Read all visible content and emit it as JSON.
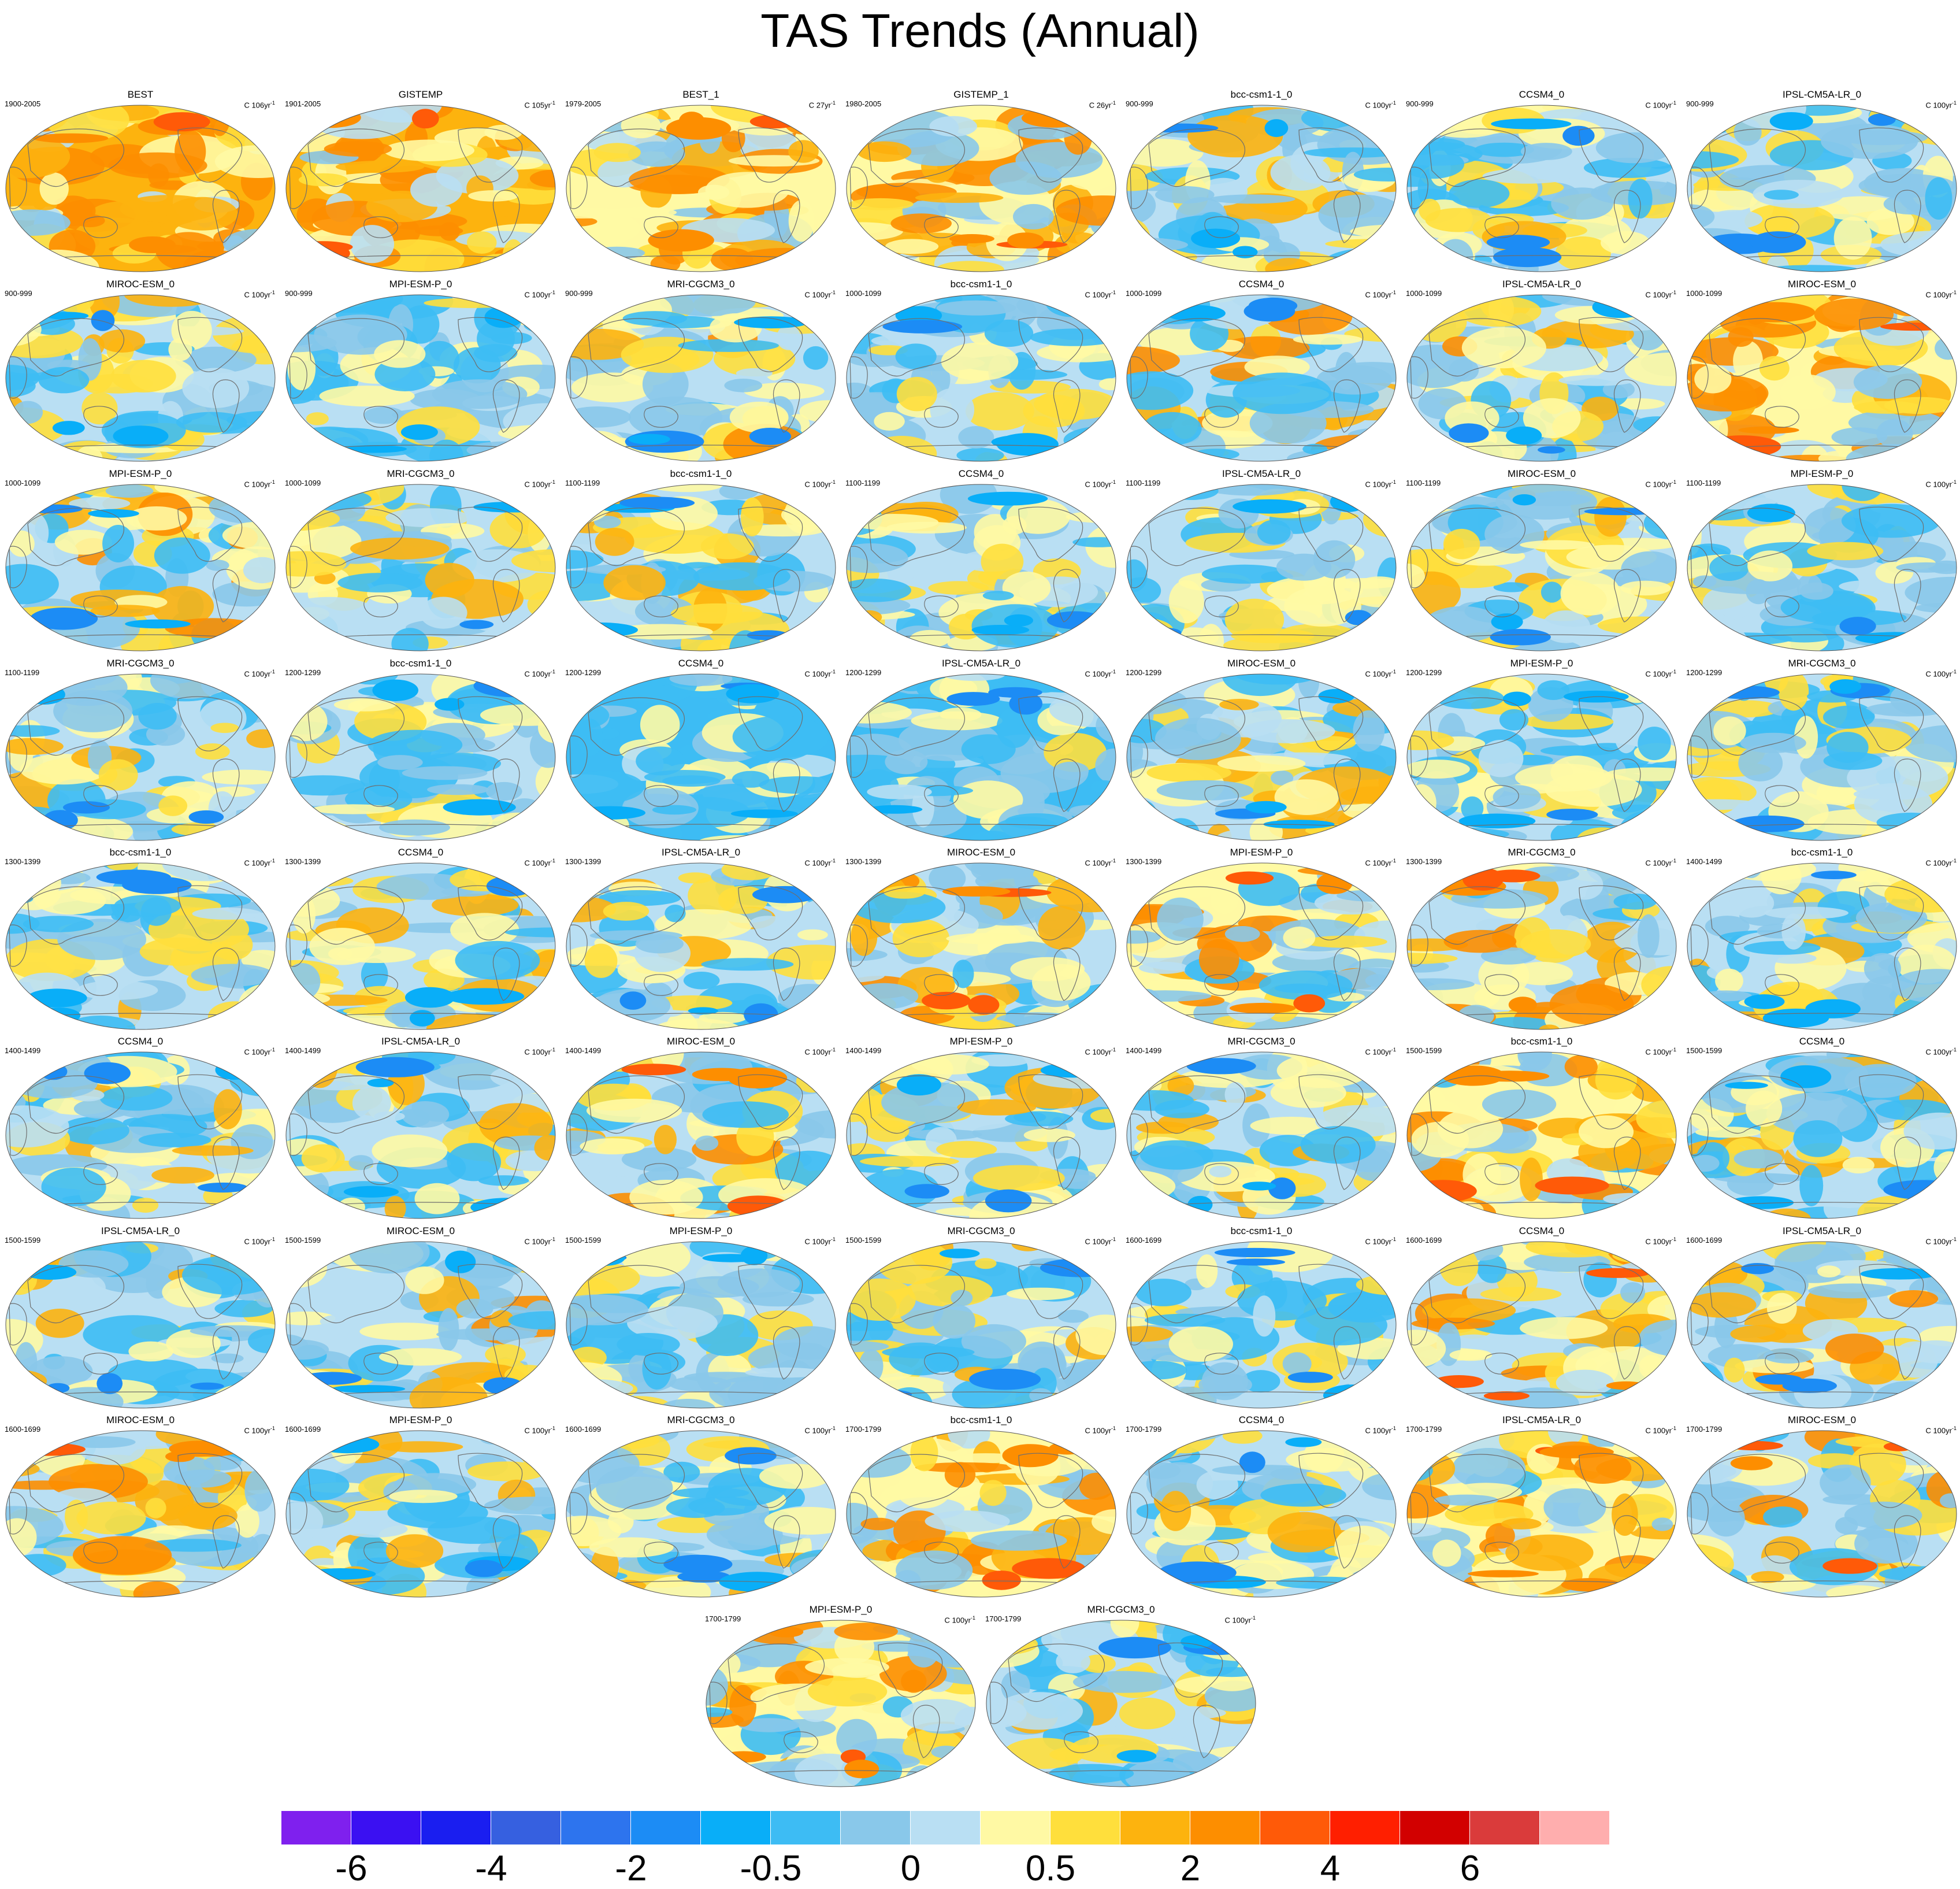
{
  "title": "TAS Trends (Annual)",
  "colors": {
    "palette": [
      "#7f20ee",
      "#3b10f2",
      "#1a1ef0",
      "#3660e0",
      "#2d74ee",
      "#1c8cf5",
      "#09aef8",
      "#3dbcf4",
      "#89c8ea",
      "#b9dff3",
      "#fff9a4",
      "#ffdf3c",
      "#fdb30e",
      "#fd8e00",
      "#ff5a08",
      "#ff1f00",
      "#d20000",
      "#da3b3b",
      "#ffaeae"
    ]
  },
  "colorbar": {
    "labels": [
      "-6",
      "-4",
      "-2",
      "-0.5",
      "0",
      "0.5",
      "2",
      "4",
      "6"
    ]
  },
  "panels": [
    {
      "name": "BEST",
      "period": "1900-2005",
      "units": "C 106yr",
      "warm": 0.92,
      "icon": "world-map"
    },
    {
      "name": "GISTEMP",
      "period": "1901-2005",
      "units": "C 105yr",
      "warm": 0.95,
      "icon": "world-map"
    },
    {
      "name": "BEST_1",
      "period": "1979-2005",
      "units": "C 27yr",
      "warm": 0.78,
      "icon": "world-map"
    },
    {
      "name": "GISTEMP_1",
      "period": "1980-2005",
      "units": "C 26yr",
      "warm": 0.78,
      "icon": "world-map"
    },
    {
      "name": "bcc-csm1-1_0",
      "period": "900-999",
      "units": "C 100yr",
      "warm": 0.5,
      "icon": "world-map"
    },
    {
      "name": "CCSM4_0",
      "period": "900-999",
      "units": "C 100yr",
      "warm": 0.4,
      "icon": "world-map"
    },
    {
      "name": "IPSL-CM5A-LR_0",
      "period": "900-999",
      "units": "C 100yr",
      "warm": 0.4,
      "icon": "world-map"
    },
    {
      "name": "MIROC-ESM_0",
      "period": "900-999",
      "units": "C 100yr",
      "warm": 0.5,
      "icon": "world-map"
    },
    {
      "name": "MPI-ESM-P_0",
      "period": "900-999",
      "units": "C 100yr",
      "warm": 0.3,
      "icon": "world-map"
    },
    {
      "name": "MRI-CGCM3_0",
      "period": "900-999",
      "units": "C 100yr",
      "warm": 0.55,
      "icon": "world-map"
    },
    {
      "name": "bcc-csm1-1_0",
      "period": "1000-1099",
      "units": "C 100yr",
      "warm": 0.4,
      "icon": "world-map"
    },
    {
      "name": "CCSM4_0",
      "period": "1000-1099",
      "units": "C 100yr",
      "warm": 0.55,
      "icon": "world-map"
    },
    {
      "name": "IPSL-CM5A-LR_0",
      "period": "1000-1099",
      "units": "C 100yr",
      "warm": 0.55,
      "icon": "world-map"
    },
    {
      "name": "MIROC-ESM_0",
      "period": "1000-1099",
      "units": "C 100yr",
      "warm": 0.75,
      "icon": "world-map"
    },
    {
      "name": "MPI-ESM-P_0",
      "period": "1000-1099",
      "units": "C 100yr",
      "warm": 0.55,
      "icon": "world-map"
    },
    {
      "name": "MRI-CGCM3_0",
      "period": "1000-1099",
      "units": "C 100yr",
      "warm": 0.5,
      "icon": "world-map"
    },
    {
      "name": "bcc-csm1-1_0",
      "period": "1100-1199",
      "units": "C 100yr",
      "warm": 0.5,
      "icon": "world-map"
    },
    {
      "name": "CCSM4_0",
      "period": "1100-1199",
      "units": "C 100yr",
      "warm": 0.45,
      "icon": "world-map"
    },
    {
      "name": "IPSL-CM5A-LR_0",
      "period": "1100-1199",
      "units": "C 100yr",
      "warm": 0.35,
      "icon": "world-map"
    },
    {
      "name": "MIROC-ESM_0",
      "period": "1100-1199",
      "units": "C 100yr",
      "warm": 0.5,
      "icon": "world-map"
    },
    {
      "name": "MPI-ESM-P_0",
      "period": "1100-1199",
      "units": "C 100yr",
      "warm": 0.35,
      "icon": "world-map"
    },
    {
      "name": "MRI-CGCM3_0",
      "period": "1100-1199",
      "units": "C 100yr",
      "warm": 0.45,
      "icon": "world-map"
    },
    {
      "name": "bcc-csm1-1_0",
      "period": "1200-1299",
      "units": "C 100yr",
      "warm": 0.3,
      "icon": "world-map"
    },
    {
      "name": "CCSM4_0",
      "period": "1200-1299",
      "units": "C 100yr",
      "warm": 0.1,
      "icon": "world-map"
    },
    {
      "name": "IPSL-CM5A-LR_0",
      "period": "1200-1299",
      "units": "C 100yr",
      "warm": 0.2,
      "icon": "world-map"
    },
    {
      "name": "MIROC-ESM_0",
      "period": "1200-1299",
      "units": "C 100yr",
      "warm": 0.5,
      "icon": "world-map"
    },
    {
      "name": "MPI-ESM-P_0",
      "period": "1200-1299",
      "units": "C 100yr",
      "warm": 0.3,
      "icon": "world-map"
    },
    {
      "name": "MRI-CGCM3_0",
      "period": "1200-1299",
      "units": "C 100yr",
      "warm": 0.35,
      "icon": "world-map"
    },
    {
      "name": "bcc-csm1-1_0",
      "period": "1300-1399",
      "units": "C 100yr",
      "warm": 0.4,
      "icon": "world-map"
    },
    {
      "name": "CCSM4_0",
      "period": "1300-1399",
      "units": "C 100yr",
      "warm": 0.5,
      "icon": "world-map"
    },
    {
      "name": "IPSL-CM5A-LR_0",
      "period": "1300-1399",
      "units": "C 100yr",
      "warm": 0.45,
      "icon": "world-map"
    },
    {
      "name": "MIROC-ESM_0",
      "period": "1300-1399",
      "units": "C 100yr",
      "warm": 0.6,
      "icon": "world-map"
    },
    {
      "name": "MPI-ESM-P_0",
      "period": "1300-1399",
      "units": "C 100yr",
      "warm": 0.65,
      "icon": "world-map"
    },
    {
      "name": "MRI-CGCM3_0",
      "period": "1300-1399",
      "units": "C 100yr",
      "warm": 0.6,
      "icon": "world-map"
    },
    {
      "name": "bcc-csm1-1_0",
      "period": "1400-1499",
      "units": "C 100yr",
      "warm": 0.45,
      "icon": "world-map"
    },
    {
      "name": "CCSM4_0",
      "period": "1400-1499",
      "units": "C 100yr",
      "warm": 0.45,
      "icon": "world-map"
    },
    {
      "name": "IPSL-CM5A-LR_0",
      "period": "1400-1499",
      "units": "C 100yr",
      "warm": 0.5,
      "icon": "world-map"
    },
    {
      "name": "MIROC-ESM_0",
      "period": "1400-1499",
      "units": "C 100yr",
      "warm": 0.6,
      "icon": "world-map"
    },
    {
      "name": "MPI-ESM-P_0",
      "period": "1400-1499",
      "units": "C 100yr",
      "warm": 0.45,
      "icon": "world-map"
    },
    {
      "name": "MRI-CGCM3_0",
      "period": "1400-1499",
      "units": "C 100yr",
      "warm": 0.5,
      "icon": "world-map"
    },
    {
      "name": "bcc-csm1-1_0",
      "period": "1500-1599",
      "units": "C 100yr",
      "warm": 0.65,
      "icon": "world-map"
    },
    {
      "name": "CCSM4_0",
      "period": "1500-1599",
      "units": "C 100yr",
      "warm": 0.45,
      "icon": "world-map"
    },
    {
      "name": "IPSL-CM5A-LR_0",
      "period": "1500-1599",
      "units": "C 100yr",
      "warm": 0.5,
      "icon": "world-map"
    },
    {
      "name": "MIROC-ESM_0",
      "period": "1500-1599",
      "units": "C 100yr",
      "warm": 0.55,
      "icon": "world-map"
    },
    {
      "name": "MPI-ESM-P_0",
      "period": "1500-1599",
      "units": "C 100yr",
      "warm": 0.4,
      "icon": "world-map"
    },
    {
      "name": "MRI-CGCM3_0",
      "period": "1500-1599",
      "units": "C 100yr",
      "warm": 0.45,
      "icon": "world-map"
    },
    {
      "name": "bcc-csm1-1_0",
      "period": "1600-1699",
      "units": "C 100yr",
      "warm": 0.45,
      "icon": "world-map"
    },
    {
      "name": "CCSM4_0",
      "period": "1600-1699",
      "units": "C 100yr",
      "warm": 0.6,
      "icon": "world-map"
    },
    {
      "name": "IPSL-CM5A-LR_0",
      "period": "1600-1699",
      "units": "C 100yr",
      "warm": 0.55,
      "icon": "world-map"
    },
    {
      "name": "MIROC-ESM_0",
      "period": "1600-1699",
      "units": "C 100yr",
      "warm": 0.6,
      "icon": "world-map"
    },
    {
      "name": "MPI-ESM-P_0",
      "period": "1600-1699",
      "units": "C 100yr",
      "warm": 0.45,
      "icon": "world-map"
    },
    {
      "name": "MRI-CGCM3_0",
      "period": "1600-1699",
      "units": "C 100yr",
      "warm": 0.5,
      "icon": "world-map"
    },
    {
      "name": "bcc-csm1-1_0",
      "period": "1700-1799",
      "units": "C 100yr",
      "warm": 0.7,
      "icon": "world-map"
    },
    {
      "name": "CCSM4_0",
      "period": "1700-1799",
      "units": "C 100yr",
      "warm": 0.5,
      "icon": "world-map"
    },
    {
      "name": "IPSL-CM5A-LR_0",
      "period": "1700-1799",
      "units": "C 100yr",
      "warm": 0.65,
      "icon": "world-map"
    },
    {
      "name": "MIROC-ESM_0",
      "period": "1700-1799",
      "units": "C 100yr",
      "warm": 0.6,
      "icon": "world-map"
    },
    {
      "name": "MPI-ESM-P_0",
      "period": "1700-1799",
      "units": "C 100yr",
      "warm": 0.65,
      "icon": "world-map"
    },
    {
      "name": "MRI-CGCM3_0",
      "period": "1700-1799",
      "units": "C 100yr",
      "warm": 0.45,
      "icon": "world-map"
    }
  ]
}
